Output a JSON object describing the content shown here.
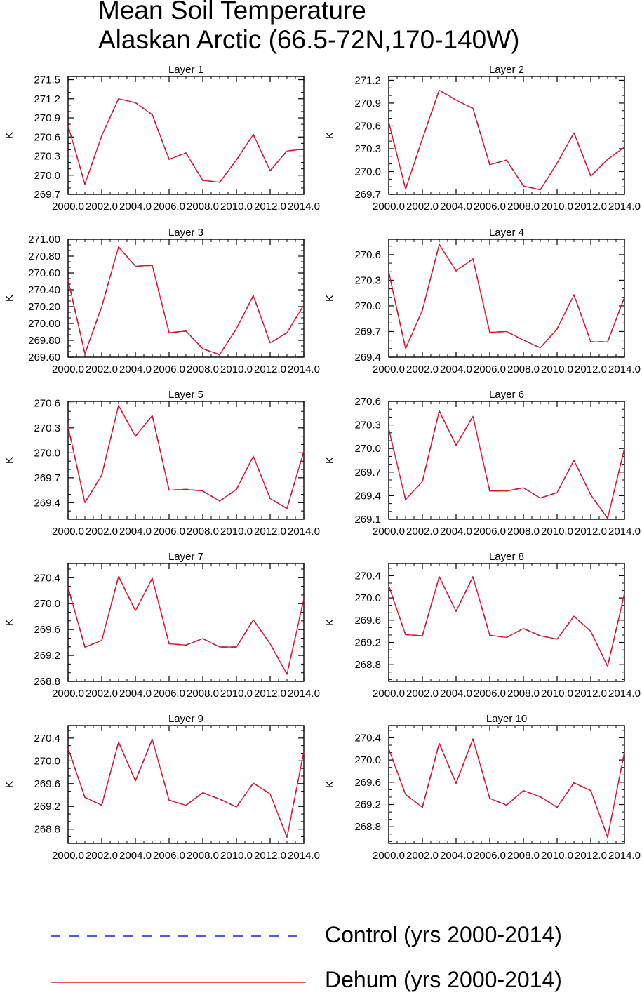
{
  "title": {
    "line1": "Mean Soil Temperature",
    "line2": "Alaskan Arctic (66.5-72N,170-140W)"
  },
  "colors": {
    "control": "#1f1fd6",
    "dehum": "#e8141b",
    "axis": "#000000"
  },
  "legend": {
    "control_label": "Control (yrs 2000-2014)",
    "dehum_label": "Dehum (yrs 2000-2014)"
  },
  "chart_data": [
    {
      "type": "line",
      "title": "Layer 1",
      "ylabel": "K",
      "x": [
        2000,
        2001,
        2002,
        2003,
        2004,
        2005,
        2006,
        2007,
        2008,
        2009,
        2010,
        2011,
        2012,
        2013,
        2014
      ],
      "xticks": [
        "2000.0",
        "2002.0",
        "2004.0",
        "2006.0",
        "2008.0",
        "2010.0",
        "2012.0",
        "2014.0"
      ],
      "xlim": [
        2000,
        2014
      ],
      "ylim": [
        269.7,
        271.55
      ],
      "yticks": [
        "269.7",
        "270.0",
        "270.3",
        "270.6",
        "270.9",
        "271.2",
        "271.5"
      ],
      "series": [
        {
          "name": "Control (yrs 2000-2014)",
          "values": [
            270.78,
            269.86,
            270.62,
            271.2,
            271.14,
            270.95,
            270.25,
            270.35,
            269.92,
            269.89,
            270.24,
            270.64,
            270.07,
            270.38,
            270.41
          ]
        },
        {
          "name": "Dehum (yrs 2000-2014)",
          "values": [
            270.78,
            269.86,
            270.62,
            271.2,
            271.14,
            270.95,
            270.25,
            270.35,
            269.92,
            269.89,
            270.24,
            270.64,
            270.07,
            270.38,
            270.41
          ]
        }
      ]
    },
    {
      "type": "line",
      "title": "Layer 2",
      "ylabel": "K",
      "x": [
        2000,
        2001,
        2002,
        2003,
        2004,
        2005,
        2006,
        2007,
        2008,
        2009,
        2010,
        2011,
        2012,
        2013,
        2014
      ],
      "xticks": [
        "2000.0",
        "2002.0",
        "2004.0",
        "2006.0",
        "2008.0",
        "2010.0",
        "2012.0",
        "2014.0"
      ],
      "xlim": [
        2000,
        2014
      ],
      "ylim": [
        269.7,
        271.25
      ],
      "yticks": [
        "269.7",
        "270.0",
        "270.3",
        "270.6",
        "270.9",
        "271.2"
      ],
      "series": [
        {
          "name": "Control (yrs 2000-2014)",
          "values": [
            270.65,
            269.77,
            270.43,
            271.07,
            270.94,
            270.83,
            270.09,
            270.15,
            269.81,
            269.76,
            270.11,
            270.51,
            269.94,
            270.16,
            270.32
          ]
        },
        {
          "name": "Dehum (yrs 2000-2014)",
          "values": [
            270.65,
            269.77,
            270.43,
            271.07,
            270.94,
            270.83,
            270.09,
            270.15,
            269.81,
            269.76,
            270.11,
            270.51,
            269.94,
            270.16,
            270.32
          ]
        }
      ]
    },
    {
      "type": "line",
      "title": "Layer 3",
      "ylabel": "K",
      "x": [
        2000,
        2001,
        2002,
        2003,
        2004,
        2005,
        2006,
        2007,
        2008,
        2009,
        2010,
        2011,
        2012,
        2013,
        2014
      ],
      "xticks": [
        "2000.0",
        "2002.0",
        "2004.0",
        "2006.0",
        "2008.0",
        "2010.0",
        "2012.0",
        "2014.0"
      ],
      "xlim": [
        2000,
        2014
      ],
      "ylim": [
        269.6,
        271.0
      ],
      "yticks": [
        "269.60",
        "269.80",
        "270.00",
        "270.20",
        "270.40",
        "270.60",
        "270.80",
        "271.00"
      ],
      "series": [
        {
          "name": "Control (yrs 2000-2014)",
          "values": [
            270.52,
            269.64,
            270.2,
            270.91,
            270.68,
            270.69,
            269.89,
            269.91,
            269.7,
            269.63,
            269.94,
            270.33,
            269.77,
            269.89,
            270.22
          ]
        },
        {
          "name": "Dehum (yrs 2000-2014)",
          "values": [
            270.52,
            269.64,
            270.2,
            270.91,
            270.68,
            270.69,
            269.89,
            269.91,
            269.7,
            269.63,
            269.94,
            270.33,
            269.77,
            269.89,
            270.22
          ]
        }
      ]
    },
    {
      "type": "line",
      "title": "Layer 4",
      "ylabel": "K",
      "x": [
        2000,
        2001,
        2002,
        2003,
        2004,
        2005,
        2006,
        2007,
        2008,
        2009,
        2010,
        2011,
        2012,
        2013,
        2014
      ],
      "xticks": [
        "2000.0",
        "2002.0",
        "2004.0",
        "2006.0",
        "2008.0",
        "2010.0",
        "2012.0",
        "2014.0"
      ],
      "xlim": [
        2000,
        2014
      ],
      "ylim": [
        269.4,
        270.78
      ],
      "yticks": [
        "269.4",
        "269.7",
        "270.0",
        "270.3",
        "270.6"
      ],
      "series": [
        {
          "name": "Control (yrs 2000-2014)",
          "values": [
            270.4,
            269.5,
            269.95,
            270.72,
            270.41,
            270.55,
            269.69,
            269.7,
            269.6,
            269.51,
            269.73,
            270.13,
            269.58,
            269.58,
            270.1
          ]
        },
        {
          "name": "Dehum (yrs 2000-2014)",
          "values": [
            270.4,
            269.5,
            269.95,
            270.72,
            270.41,
            270.55,
            269.69,
            269.7,
            269.6,
            269.51,
            269.73,
            270.13,
            269.58,
            269.58,
            270.1
          ]
        }
      ]
    },
    {
      "type": "line",
      "title": "Layer 5",
      "ylabel": "K",
      "x": [
        2000,
        2001,
        2002,
        2003,
        2004,
        2005,
        2006,
        2007,
        2008,
        2009,
        2010,
        2011,
        2012,
        2013,
        2014
      ],
      "xticks": [
        "2000.0",
        "2002.0",
        "2004.0",
        "2006.0",
        "2008.0",
        "2010.0",
        "2012.0",
        "2014.0"
      ],
      "xlim": [
        2000,
        2014
      ],
      "ylim": [
        269.2,
        270.62
      ],
      "yticks": [
        "269.4",
        "269.7",
        "270.0",
        "270.3",
        "270.6"
      ],
      "series": [
        {
          "name": "Control (yrs 2000-2014)",
          "values": [
            270.32,
            269.4,
            269.73,
            270.57,
            270.2,
            270.45,
            269.55,
            269.56,
            269.54,
            269.42,
            269.56,
            269.96,
            269.45,
            269.33,
            270.02
          ]
        },
        {
          "name": "Dehum (yrs 2000-2014)",
          "values": [
            270.32,
            269.4,
            269.73,
            270.57,
            270.2,
            270.45,
            269.55,
            269.56,
            269.54,
            269.42,
            269.56,
            269.96,
            269.45,
            269.33,
            270.02
          ]
        }
      ]
    },
    {
      "type": "line",
      "title": "Layer 6",
      "ylabel": "K",
      "x": [
        2000,
        2001,
        2002,
        2003,
        2004,
        2005,
        2006,
        2007,
        2008,
        2009,
        2010,
        2011,
        2012,
        2013,
        2014
      ],
      "xticks": [
        "2000.0",
        "2002.0",
        "2004.0",
        "2006.0",
        "2008.0",
        "2010.0",
        "2012.0",
        "2014.0"
      ],
      "xlim": [
        2000,
        2014
      ],
      "ylim": [
        269.1,
        270.6
      ],
      "yticks": [
        "269.1",
        "269.4",
        "269.7",
        "270.0",
        "270.3",
        "270.6"
      ],
      "series": [
        {
          "name": "Control (yrs 2000-2014)",
          "values": [
            270.25,
            269.35,
            269.58,
            270.48,
            270.04,
            270.41,
            269.46,
            269.46,
            269.5,
            269.37,
            269.44,
            269.85,
            269.41,
            269.11,
            270.0
          ]
        },
        {
          "name": "Dehum (yrs 2000-2014)",
          "values": [
            270.25,
            269.35,
            269.58,
            270.48,
            270.04,
            270.41,
            269.46,
            269.46,
            269.5,
            269.37,
            269.44,
            269.85,
            269.41,
            269.11,
            270.0
          ]
        }
      ]
    },
    {
      "type": "line",
      "title": "Layer 7",
      "ylabel": "K",
      "x": [
        2000,
        2001,
        2002,
        2003,
        2004,
        2005,
        2006,
        2007,
        2008,
        2009,
        2010,
        2011,
        2012,
        2013,
        2014
      ],
      "xticks": [
        "2000.0",
        "2002.0",
        "2004.0",
        "2006.0",
        "2008.0",
        "2010.0",
        "2012.0",
        "2014.0"
      ],
      "xlim": [
        2000,
        2014
      ],
      "ylim": [
        268.8,
        270.62
      ],
      "yticks": [
        "268.8",
        "269.2",
        "269.6",
        "270.0",
        "270.4"
      ],
      "series": [
        {
          "name": "Control (yrs 2000-2014)",
          "values": [
            270.25,
            269.33,
            269.43,
            270.42,
            269.89,
            270.39,
            269.38,
            269.36,
            269.46,
            269.33,
            269.33,
            269.75,
            269.38,
            268.91,
            270.07
          ]
        },
        {
          "name": "Dehum (yrs 2000-2014)",
          "values": [
            270.25,
            269.33,
            269.43,
            270.42,
            269.89,
            270.39,
            269.38,
            269.36,
            269.46,
            269.33,
            269.33,
            269.75,
            269.38,
            268.91,
            270.07
          ]
        }
      ]
    },
    {
      "type": "line",
      "title": "Layer 8",
      "ylabel": "K",
      "x": [
        2000,
        2001,
        2002,
        2003,
        2004,
        2005,
        2006,
        2007,
        2008,
        2009,
        2010,
        2011,
        2012,
        2013,
        2014
      ],
      "xticks": [
        "2000.0",
        "2002.0",
        "2004.0",
        "2006.0",
        "2008.0",
        "2010.0",
        "2012.0",
        "2014.0"
      ],
      "xlim": [
        2000,
        2014
      ],
      "ylim": [
        268.5,
        270.62
      ],
      "yticks": [
        "268.8",
        "269.2",
        "269.6",
        "270.0",
        "270.4"
      ],
      "series": [
        {
          "name": "Control (yrs 2000-2014)",
          "values": [
            270.22,
            269.34,
            269.32,
            270.38,
            269.76,
            270.38,
            269.33,
            269.29,
            269.45,
            269.32,
            269.26,
            269.67,
            269.4,
            268.77,
            270.08
          ]
        },
        {
          "name": "Dehum (yrs 2000-2014)",
          "values": [
            270.22,
            269.34,
            269.32,
            270.38,
            269.76,
            270.38,
            269.33,
            269.29,
            269.45,
            269.32,
            269.26,
            269.67,
            269.4,
            268.77,
            270.08
          ]
        }
      ]
    },
    {
      "type": "line",
      "title": "Layer 9",
      "ylabel": "K",
      "x": [
        2000,
        2001,
        2002,
        2003,
        2004,
        2005,
        2006,
        2007,
        2008,
        2009,
        2010,
        2011,
        2012,
        2013,
        2014
      ],
      "xticks": [
        "2000.0",
        "2002.0",
        "2004.0",
        "2006.0",
        "2008.0",
        "2010.0",
        "2012.0",
        "2014.0"
      ],
      "xlim": [
        2000,
        2014
      ],
      "ylim": [
        268.55,
        270.62
      ],
      "yticks": [
        "268.8",
        "269.2",
        "269.6",
        "270.0",
        "270.4"
      ],
      "series": [
        {
          "name": "Control (yrs 2000-2014)",
          "values": [
            270.22,
            269.36,
            269.22,
            270.33,
            269.65,
            270.38,
            269.31,
            269.22,
            269.44,
            269.33,
            269.19,
            269.61,
            269.42,
            268.66,
            270.16
          ]
        },
        {
          "name": "Dehum (yrs 2000-2014)",
          "values": [
            270.22,
            269.36,
            269.22,
            270.33,
            269.65,
            270.38,
            269.31,
            269.22,
            269.44,
            269.33,
            269.19,
            269.61,
            269.42,
            268.66,
            270.16
          ]
        }
      ]
    },
    {
      "type": "line",
      "title": "Layer 10",
      "ylabel": "K",
      "x": [
        2000,
        2001,
        2002,
        2003,
        2004,
        2005,
        2006,
        2007,
        2008,
        2009,
        2010,
        2011,
        2012,
        2013,
        2014
      ],
      "xticks": [
        "2000.0",
        "2002.0",
        "2004.0",
        "2006.0",
        "2008.0",
        "2010.0",
        "2012.0",
        "2014.0"
      ],
      "xlim": [
        2000,
        2014
      ],
      "ylim": [
        268.5,
        270.62
      ],
      "yticks": [
        "268.8",
        "269.2",
        "269.6",
        "270.0",
        "270.4"
      ],
      "series": [
        {
          "name": "Control (yrs 2000-2014)",
          "values": [
            270.2,
            269.38,
            269.15,
            270.3,
            269.58,
            270.38,
            269.31,
            269.19,
            269.45,
            269.34,
            269.15,
            269.59,
            269.45,
            268.61,
            270.15
          ]
        },
        {
          "name": "Dehum (yrs 2000-2014)",
          "values": [
            270.2,
            269.38,
            269.15,
            270.3,
            269.58,
            270.38,
            269.31,
            269.19,
            269.45,
            269.34,
            269.15,
            269.59,
            269.45,
            268.61,
            270.15
          ]
        }
      ]
    }
  ]
}
